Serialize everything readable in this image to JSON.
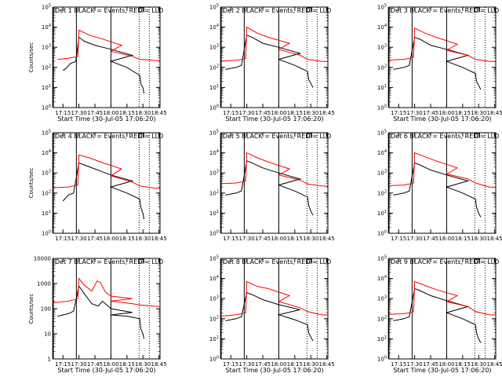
{
  "chart_data": [
    {
      "type": "line",
      "title": "Det 1 BLACK = Events, RED = LLD",
      "ylabel": "Counts/sec",
      "xlabel": "Start Time (30-Jul-05 17:06:20)",
      "xticks": [
        "17:15",
        "17:30",
        "17:45",
        "18:00",
        "18:15",
        "18:30",
        "18:45"
      ],
      "ylog_exp": [
        0,
        1,
        2,
        3,
        4,
        5
      ],
      "ytick_style": "exp",
      "series": [
        {
          "name": "Events",
          "color": "#000000",
          "x": [
            17.15,
            17.18,
            17.22,
            17.25,
            17.27,
            17.3,
            17.35,
            17.45,
            17.6,
            17.8,
            18.0,
            18.15,
            18.27,
            18.28,
            18.3,
            18.31
          ],
          "y": [
            1.85,
            1.95,
            2.2,
            2.25,
            2.3,
            3.5,
            3.3,
            3.1,
            2.9,
            2.6,
            2.3,
            2.0,
            1.6,
            1.2,
            1.0,
            0.7
          ]
        },
        {
          "name": "LLD",
          "color": "#ff0000",
          "x": [
            17.1,
            17.2,
            17.25,
            17.29,
            17.3,
            17.4,
            17.5,
            17.7,
            18.0,
            18.2,
            18.27,
            18.4,
            18.6
          ],
          "y": [
            2.4,
            2.45,
            2.5,
            2.55,
            3.85,
            3.6,
            3.45,
            3.1,
            2.8,
            2.55,
            2.4,
            2.35,
            2.3
          ]
        }
      ]
    },
    {
      "type": "line",
      "title": "Det 2 BLACK = Events, RED = LLD",
      "ylabel": "",
      "xlabel": "Start Time (30-Jul-05 17:06:20)",
      "xticks": [
        "17:15",
        "17:30",
        "17:45",
        "18:00",
        "18:15",
        "18:30",
        "18:45"
      ],
      "ylog_exp": [
        0,
        1,
        2,
        3,
        4,
        5
      ],
      "ytick_style": "exp",
      "series": [
        {
          "name": "Events",
          "color": "#000000",
          "x": [
            17.1,
            17.2,
            17.25,
            17.3,
            17.35,
            17.45,
            17.6,
            17.8,
            18.0,
            18.15,
            18.27,
            18.28,
            18.3,
            18.32
          ],
          "y": [
            1.9,
            2.0,
            2.1,
            3.6,
            3.5,
            3.2,
            3.0,
            2.7,
            2.4,
            2.1,
            1.8,
            1.4,
            1.2,
            1.0
          ]
        },
        {
          "name": "LLD",
          "color": "#ff0000",
          "x": [
            17.0,
            17.2,
            17.25,
            17.29,
            17.3,
            17.4,
            17.5,
            17.7,
            18.0,
            18.2,
            18.27,
            18.4,
            18.6
          ],
          "y": [
            2.3,
            2.35,
            2.4,
            2.45,
            4.0,
            3.7,
            3.5,
            3.2,
            2.9,
            2.6,
            2.4,
            2.3,
            2.25
          ]
        }
      ]
    },
    {
      "type": "line",
      "title": "Det 3 BLACK = Events, RED = LLD",
      "ylabel": "",
      "xlabel": "Start Time (30-Jul-05 17:06:20)",
      "xticks": [
        "17:15",
        "17:30",
        "17:45",
        "18:00",
        "18:15",
        "18:30",
        "18:45"
      ],
      "ylog_exp": [
        0,
        1,
        2,
        3,
        4,
        5
      ],
      "ytick_style": "exp",
      "series": [
        {
          "name": "Events",
          "color": "#000000",
          "x": [
            17.1,
            17.2,
            17.25,
            17.3,
            17.35,
            17.45,
            17.6,
            17.8,
            18.0,
            18.15,
            18.27,
            18.28,
            18.3,
            18.32
          ],
          "y": [
            1.9,
            2.0,
            2.1,
            3.5,
            3.4,
            3.1,
            2.9,
            2.6,
            2.3,
            2.0,
            1.7,
            1.3,
            1.1,
            0.9
          ]
        },
        {
          "name": "LLD",
          "color": "#ff0000",
          "x": [
            17.0,
            17.2,
            17.25,
            17.29,
            17.3,
            17.4,
            17.5,
            17.7,
            18.0,
            18.2,
            18.27,
            18.4,
            18.6
          ],
          "y": [
            2.35,
            2.4,
            2.45,
            2.5,
            3.95,
            3.7,
            3.5,
            3.15,
            2.85,
            2.6,
            2.4,
            2.3,
            2.25
          ]
        }
      ]
    },
    {
      "type": "line",
      "title": "Det 4 BLACK = Events, RED = LLD",
      "ylabel": "Counts/sec",
      "xlabel": "",
      "xticks": [
        "17:15",
        "17:30",
        "17:45",
        "18:00",
        "18:15",
        "18:30",
        "18:45"
      ],
      "ylog_exp": [
        0,
        1,
        2,
        3,
        4,
        5
      ],
      "ytick_style": "exp",
      "series": [
        {
          "name": "Events",
          "color": "#000000",
          "x": [
            17.15,
            17.2,
            17.25,
            17.3,
            17.35,
            17.45,
            17.6,
            17.8,
            18.0,
            18.15,
            18.27,
            18.28,
            18.3,
            18.31
          ],
          "y": [
            1.6,
            1.9,
            2.0,
            3.5,
            3.4,
            3.2,
            2.9,
            2.6,
            2.3,
            2.0,
            1.7,
            1.3,
            1.0,
            0.7
          ]
        },
        {
          "name": "LLD",
          "color": "#ff0000",
          "x": [
            17.0,
            17.2,
            17.25,
            17.29,
            17.3,
            17.4,
            17.5,
            17.7,
            18.0,
            18.2,
            18.27,
            18.4,
            18.6
          ],
          "y": [
            2.25,
            2.3,
            2.35,
            2.4,
            3.9,
            3.75,
            3.55,
            3.2,
            2.85,
            2.55,
            2.35,
            2.25,
            2.2
          ]
        }
      ]
    },
    {
      "type": "line",
      "title": "Det 5 BLACK = Events, RED = LLD",
      "ylabel": "",
      "xlabel": "",
      "xticks": [
        "17:15",
        "17:30",
        "17:45",
        "18:00",
        "18:15",
        "18:30",
        "18:45"
      ],
      "ylog_exp": [
        0,
        1,
        2,
        3,
        4,
        5
      ],
      "ytick_style": "exp",
      "series": [
        {
          "name": "Events",
          "color": "#000000",
          "x": [
            17.1,
            17.2,
            17.25,
            17.3,
            17.35,
            17.45,
            17.6,
            17.8,
            18.0,
            18.15,
            18.27,
            18.28,
            18.3,
            18.32
          ],
          "y": [
            1.9,
            2.0,
            2.1,
            3.6,
            3.5,
            3.25,
            3.0,
            2.7,
            2.4,
            2.1,
            1.8,
            1.4,
            1.1,
            0.9
          ]
        },
        {
          "name": "LLD",
          "color": "#ff0000",
          "x": [
            17.0,
            17.2,
            17.25,
            17.29,
            17.3,
            17.4,
            17.5,
            17.7,
            18.0,
            18.2,
            18.27,
            18.4,
            18.6
          ],
          "y": [
            2.45,
            2.5,
            2.55,
            2.6,
            4.0,
            3.75,
            3.55,
            3.2,
            2.9,
            2.65,
            2.45,
            2.35,
            2.3
          ]
        }
      ]
    },
    {
      "type": "line",
      "title": "Det 6 BLACK = Events, RED = LLD",
      "ylabel": "",
      "xlabel": "",
      "xticks": [
        "17:15",
        "17:30",
        "17:45",
        "18:00",
        "18:15",
        "18:30",
        "18:45"
      ],
      "ylog_exp": [
        0,
        1,
        2,
        3,
        4,
        5
      ],
      "ytick_style": "exp",
      "series": [
        {
          "name": "Events",
          "color": "#000000",
          "x": [
            17.1,
            17.2,
            17.25,
            17.3,
            17.35,
            17.45,
            17.6,
            17.8,
            18.0,
            18.15,
            18.27,
            18.28,
            18.3,
            18.32
          ],
          "y": [
            1.9,
            2.0,
            2.1,
            3.5,
            3.4,
            3.15,
            2.9,
            2.6,
            2.3,
            2.0,
            1.7,
            1.3,
            1.0,
            0.8
          ]
        },
        {
          "name": "LLD",
          "color": "#ff0000",
          "x": [
            17.0,
            17.2,
            17.25,
            17.29,
            17.3,
            17.4,
            17.5,
            17.7,
            18.0,
            18.2,
            18.27,
            18.4,
            18.6
          ],
          "y": [
            2.35,
            2.4,
            2.45,
            2.5,
            4.0,
            3.8,
            3.6,
            3.25,
            2.95,
            2.7,
            2.5,
            2.3,
            2.25
          ]
        }
      ]
    },
    {
      "type": "line",
      "title": "Det 7 BLACK = Events, RED = LLD",
      "ylabel": "Counts/sec",
      "xlabel": "Start Time (30-Jul-05 17:06:20)",
      "xticks": [
        "17:15",
        "17:30",
        "17:45",
        "18:00",
        "18:15",
        "18:30",
        "18:45"
      ],
      "ylog_exp": [
        0,
        1,
        2,
        3,
        4
      ],
      "ytick_style": "plain",
      "ytick_labels": [
        "1",
        "10",
        "100",
        "1000",
        "10000"
      ],
      "series": [
        {
          "name": "Events",
          "color": "#000000",
          "x": [
            17.1,
            17.2,
            17.25,
            17.3,
            17.35,
            17.42,
            17.48,
            17.52,
            17.6,
            17.8,
            18.0,
            18.15,
            18.27,
            18.28,
            18.3,
            18.31
          ],
          "y": [
            1.7,
            1.8,
            1.9,
            2.9,
            2.6,
            2.2,
            2.1,
            2.3,
            2.0,
            1.85,
            1.75,
            1.7,
            1.6,
            1.2,
            1.0,
            0.8
          ]
        },
        {
          "name": "LLD",
          "color": "#ff0000",
          "x": [
            17.0,
            17.2,
            17.25,
            17.29,
            17.3,
            17.36,
            17.42,
            17.47,
            17.5,
            17.55,
            17.6,
            17.8,
            18.0,
            18.2,
            18.27,
            18.4,
            18.6
          ],
          "y": [
            2.2,
            2.3,
            2.35,
            2.4,
            3.2,
            2.9,
            2.7,
            3.1,
            3.05,
            2.65,
            2.5,
            2.4,
            2.3,
            2.2,
            2.15,
            2.1,
            2.05
          ]
        }
      ]
    },
    {
      "type": "line",
      "title": "Det 8 BLACK = Events, RED = LLD",
      "ylabel": "",
      "xlabel": "Start Time (30-Jul-05 17:06:20)",
      "xticks": [
        "17:15",
        "17:30",
        "17:45",
        "18:00",
        "18:15",
        "18:30",
        "18:45"
      ],
      "ylog_exp": [
        0,
        1,
        2,
        3,
        4,
        5
      ],
      "ytick_style": "exp",
      "series": [
        {
          "name": "Events",
          "color": "#000000",
          "x": [
            17.1,
            17.2,
            17.25,
            17.3,
            17.35,
            17.45,
            17.6,
            17.8,
            18.0,
            18.15,
            18.27,
            18.28,
            18.3,
            18.32
          ],
          "y": [
            1.9,
            2.0,
            2.1,
            3.3,
            3.2,
            2.95,
            2.7,
            2.45,
            2.2,
            1.95,
            1.7,
            1.3,
            1.1,
            0.9
          ]
        },
        {
          "name": "LLD",
          "color": "#ff0000",
          "x": [
            17.0,
            17.2,
            17.25,
            17.29,
            17.3,
            17.4,
            17.5,
            17.7,
            18.0,
            18.2,
            18.27,
            18.4,
            18.6
          ],
          "y": [
            2.1,
            2.2,
            2.25,
            2.3,
            3.85,
            3.6,
            3.5,
            3.15,
            2.85,
            2.55,
            2.35,
            2.2,
            2.15
          ]
        }
      ]
    },
    {
      "type": "line",
      "title": "Det 9 BLACK = Events, RED = LLD",
      "ylabel": "",
      "xlabel": "Start Time (30-Jul-05 17:06:20)",
      "xticks": [
        "17:15",
        "17:30",
        "17:45",
        "18:00",
        "18:15",
        "18:30",
        "18:45"
      ],
      "ylog_exp": [
        0,
        1,
        2,
        3,
        4,
        5
      ],
      "ytick_style": "exp",
      "series": [
        {
          "name": "Events",
          "color": "#000000",
          "x": [
            17.1,
            17.2,
            17.25,
            17.3,
            17.35,
            17.45,
            17.6,
            17.8,
            18.0,
            18.15,
            18.27,
            18.28,
            18.3,
            18.32
          ],
          "y": [
            1.9,
            2.0,
            2.1,
            3.5,
            3.4,
            3.15,
            2.9,
            2.6,
            2.3,
            2.0,
            1.7,
            1.3,
            1.0,
            0.8
          ]
        },
        {
          "name": "LLD",
          "color": "#ff0000",
          "x": [
            17.0,
            17.2,
            17.25,
            17.29,
            17.3,
            17.4,
            17.5,
            17.7,
            18.0,
            18.2,
            18.27,
            18.4,
            18.6
          ],
          "y": [
            2.2,
            2.25,
            2.3,
            2.35,
            3.85,
            3.65,
            3.45,
            3.15,
            2.85,
            2.6,
            2.35,
            2.2,
            2.15
          ]
        }
      ]
    }
  ]
}
